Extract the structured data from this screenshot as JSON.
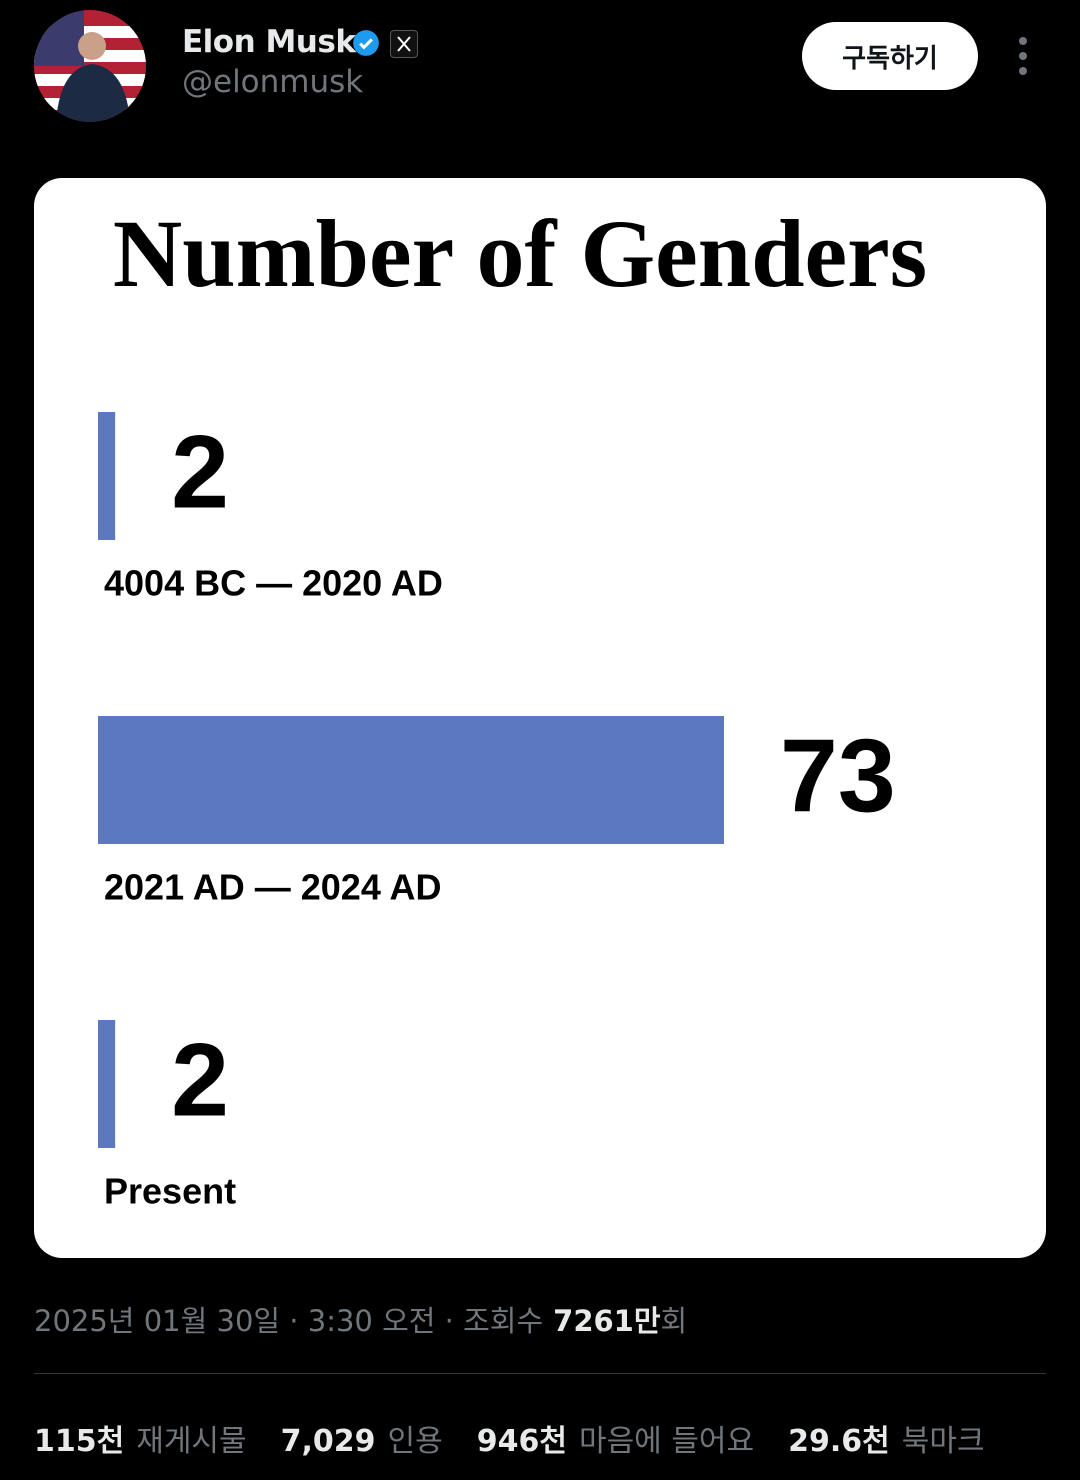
{
  "header": {
    "name": "Elon Musk",
    "handle": "@elonmusk",
    "button": "구독하기"
  },
  "chart_data": {
    "type": "bar",
    "orientation": "horizontal",
    "title": "Number of Genders",
    "categories": [
      "4004 BC — 2020 AD",
      "2021 AD — 2024 AD",
      "Present"
    ],
    "values": [
      2,
      73,
      2
    ],
    "color": "#5b78c0"
  },
  "footer": {
    "meta": "2025년 01월 30일 · 3:30 오전 · 조회수",
    "views": "7261만",
    "views_suffix": "회",
    "stats": [
      {
        "value": "115천",
        "label": "재게시물"
      },
      {
        "value": "7,029",
        "label": "인용"
      },
      {
        "value": "946천",
        "label": "마음에 들어요"
      },
      {
        "value": "29.6천",
        "label": "북마크"
      }
    ]
  }
}
